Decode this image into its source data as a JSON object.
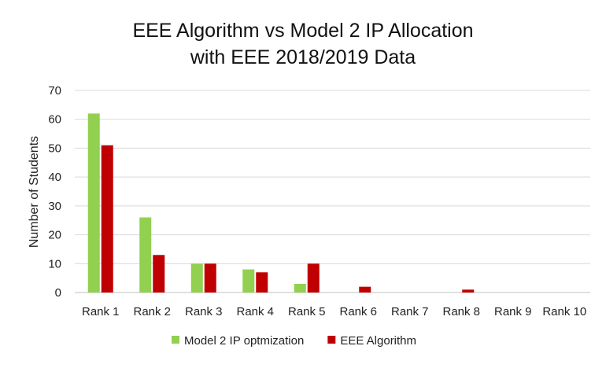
{
  "chart_data": {
    "type": "bar",
    "title_lines": [
      "EEE Algorithm vs Model 2 IP Allocation",
      "with EEE 2018/2019 Data"
    ],
    "xlabel": "",
    "ylabel": "Number of Students",
    "categories": [
      "Rank 1",
      "Rank 2",
      "Rank 3",
      "Rank 4",
      "Rank 5",
      "Rank 6",
      "Rank 7",
      "Rank 8",
      "Rank 9",
      "Rank 10"
    ],
    "series": [
      {
        "name": "Model 2 IP optmization",
        "color": "#92d050",
        "values": [
          62,
          26,
          10,
          8,
          3,
          0,
          0,
          0,
          0,
          0
        ]
      },
      {
        "name": "EEE Algorithm",
        "color": "#c00000",
        "values": [
          51,
          13,
          10,
          7,
          10,
          2,
          0,
          1,
          0,
          0
        ]
      }
    ],
    "ylim": [
      0,
      70
    ],
    "yticks": [
      0,
      10,
      20,
      30,
      40,
      50,
      60,
      70
    ],
    "grid": true,
    "legend_position": "bottom"
  }
}
